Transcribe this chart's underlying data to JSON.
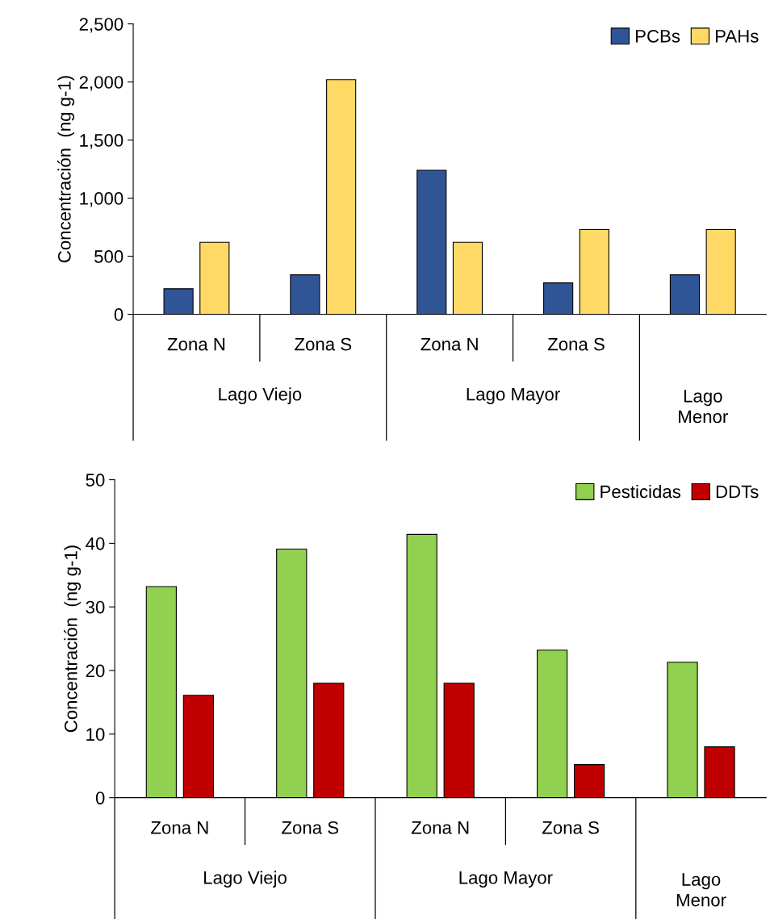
{
  "chart_data": [
    {
      "type": "bar",
      "ylabel": "Concentración  (ng g-1)",
      "categories": [
        "Zona N",
        "Zona S",
        "Zona N",
        "Zona S",
        null
      ],
      "annotations": [
        "Lago Viejo",
        "Lago Mayor",
        "Lago Menor"
      ],
      "series": [
        {
          "name": "PCBs",
          "color": "#2f5597",
          "values": [
            220,
            340,
            1240,
            270,
            340
          ]
        },
        {
          "name": "PAHs",
          "color": "#ffd966",
          "values": [
            620,
            2020,
            620,
            730,
            730
          ]
        }
      ],
      "ylim": [
        0,
        2500
      ],
      "yticks": [
        0,
        500,
        {
          "value": 1000,
          "label": "1,000"
        },
        {
          "value": 1500,
          "label": "1,500"
        },
        {
          "value": 2000,
          "label": "2,000"
        },
        {
          "value": 2500,
          "label": "2,500"
        }
      ],
      "legend": "top right"
    },
    {
      "type": "bar",
      "ylabel": "Concentración  (ng g-1)",
      "categories": [
        "Zona N",
        "Zona S",
        "Zona N",
        "Zona S",
        null
      ],
      "annotations": [
        "Lago Viejo",
        "Lago Mayor",
        "Lago Menor"
      ],
      "series": [
        {
          "name": "Pesticidas",
          "color": "#92d050",
          "values": [
            33.2,
            39.1,
            41.4,
            23.2,
            21.3
          ]
        },
        {
          "name": "DDTs",
          "color": "#c00000",
          "values": [
            16.1,
            18.0,
            18.0,
            5.2,
            8.0
          ]
        }
      ],
      "ylim": [
        0,
        50
      ],
      "yticks": [
        0,
        10,
        20,
        30,
        40,
        50
      ],
      "legend": "top right"
    }
  ]
}
